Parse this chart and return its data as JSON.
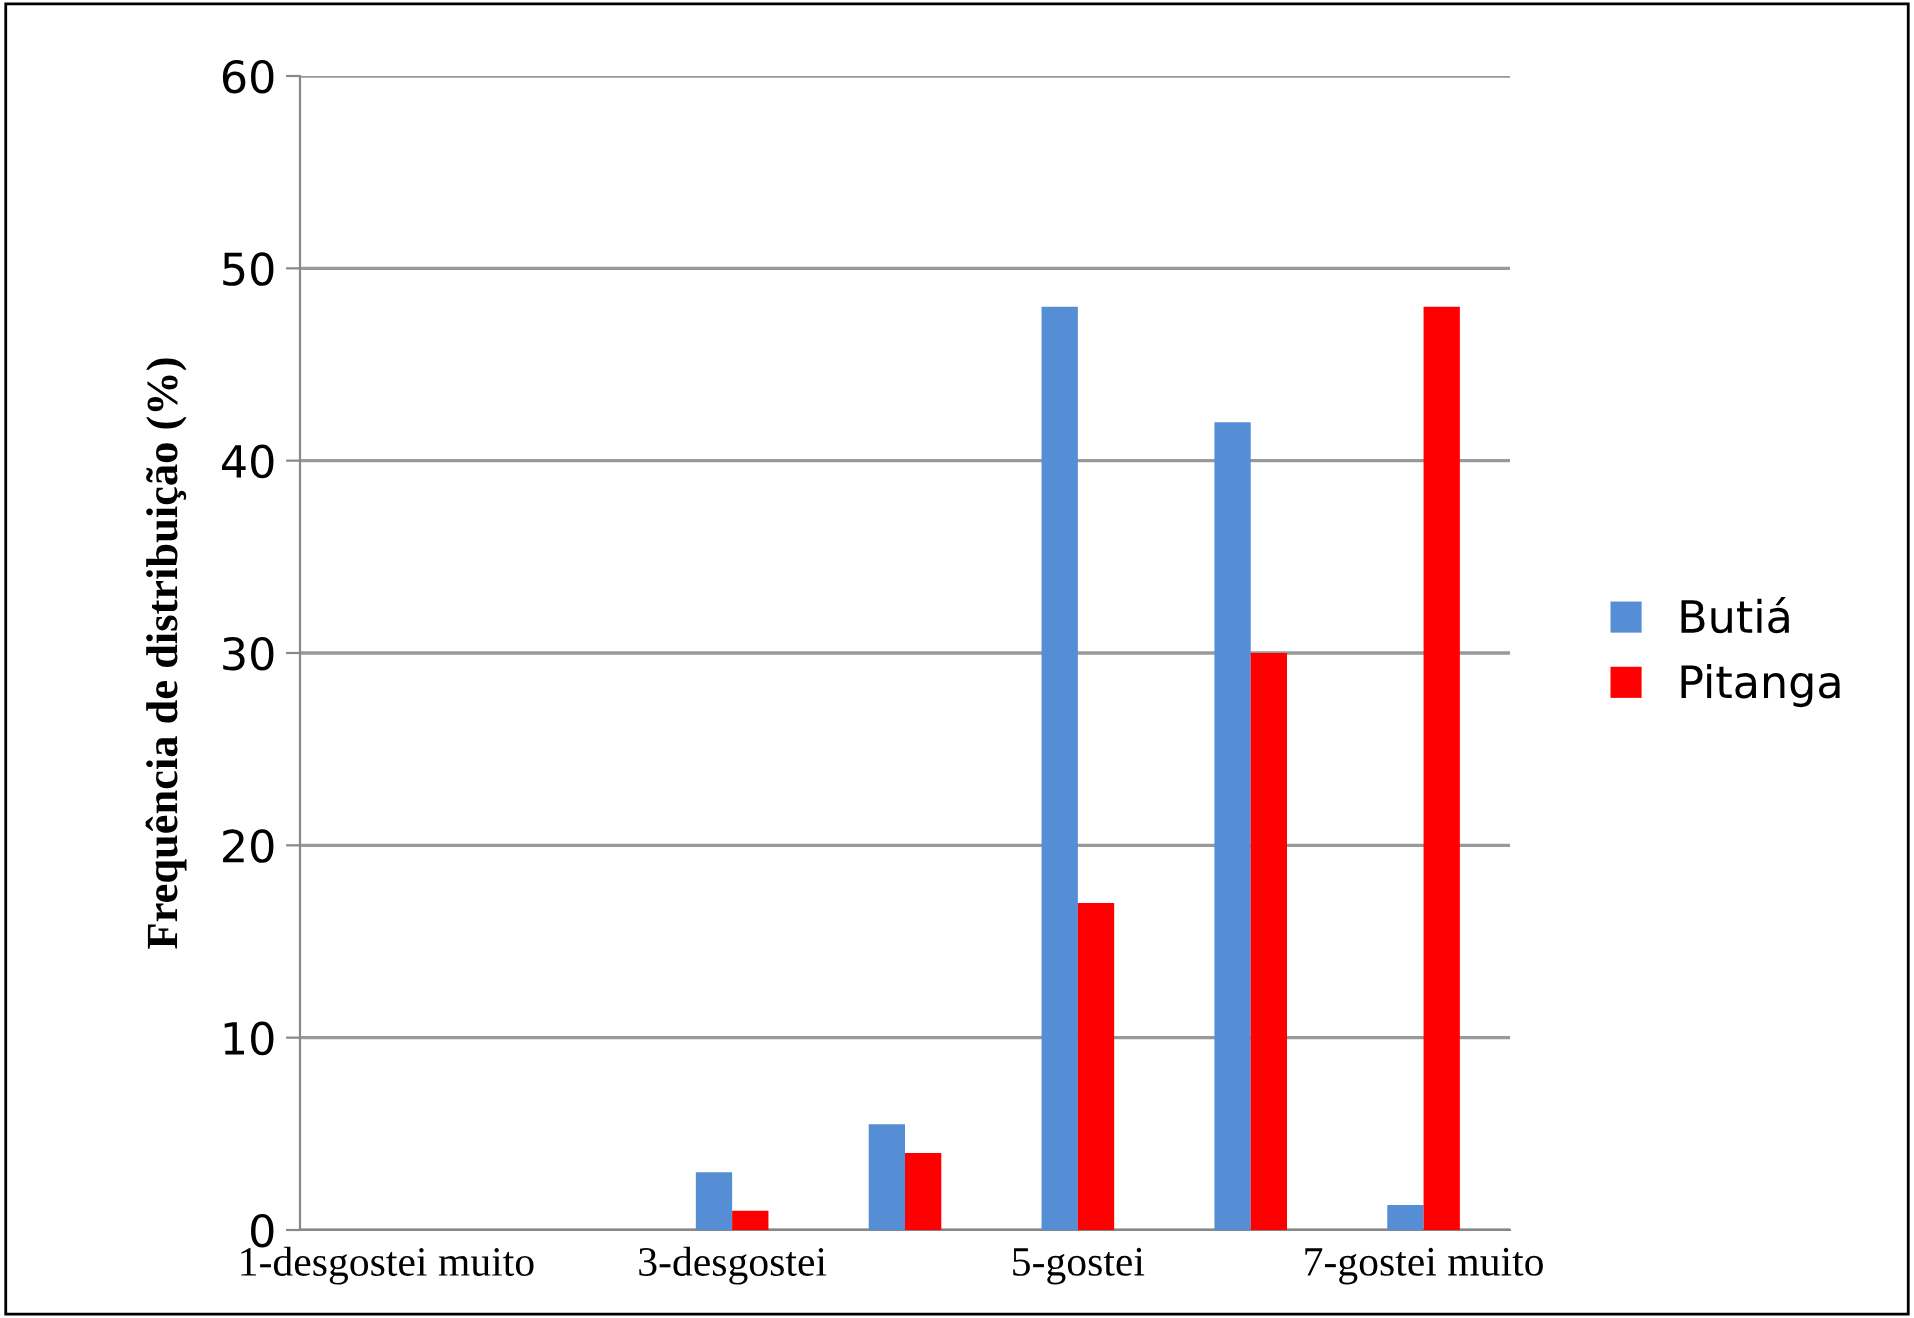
{
  "chart_data": {
    "type": "bar",
    "ylabel": "Frequência de distribuição (%)",
    "categories": [
      "1-desgostei muito",
      null,
      "3-desgostei",
      null,
      "5-gostei",
      null,
      "7-gostei muito"
    ],
    "series": [
      {
        "name": "Butiá",
        "color": "#558ed5",
        "values": [
          0,
          0,
          3,
          5.5,
          48,
          42,
          1.3
        ]
      },
      {
        "name": "Pitanga",
        "color": "#ff0000",
        "values": [
          0,
          0,
          1,
          4,
          17,
          30,
          48
        ]
      }
    ],
    "ylim": [
      0,
      60
    ],
    "yticks": [
      0,
      10,
      20,
      30,
      40,
      50,
      60
    ],
    "grid": "y",
    "legend": "right"
  }
}
